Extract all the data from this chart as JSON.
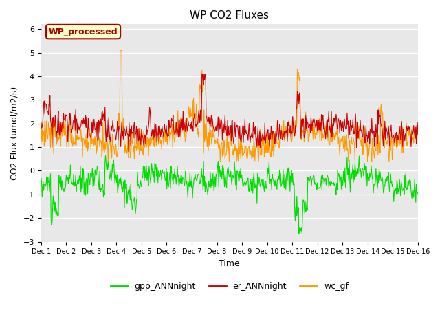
{
  "title": "WP CO2 Fluxes",
  "xlabel": "Time",
  "ylabel": "CO2 Flux (umol/m2/s)",
  "ylim": [
    -3.0,
    6.2
  ],
  "yticks": [
    -3.0,
    -2.0,
    -1.0,
    0.0,
    1.0,
    2.0,
    3.0,
    4.0,
    5.0,
    6.0
  ],
  "n_days": 15,
  "n_per_day": 48,
  "xtick_labels": [
    "Dec 1",
    "Dec 2",
    "Dec 3",
    "Dec 4",
    "Dec 5",
    "Dec 6",
    "Dec 7",
    "Dec 8",
    "Dec 9",
    "Dec 10",
    "Dec 11",
    "Dec 12",
    "Dec 13",
    "Dec 14",
    "Dec 15",
    "Dec 16"
  ],
  "legend_labels": [
    "gpp_ANNnight",
    "er_ANNnight",
    "wc_gf"
  ],
  "legend_colors": [
    "#00dd00",
    "#cc0000",
    "#ff9900"
  ],
  "line_colors": {
    "gpp": "#00dd00",
    "er": "#cc0000",
    "wc": "#ff9900"
  },
  "annotation_text": "WP_processed",
  "annotation_color": "#aa0000",
  "annotation_bg": "#ffffcc",
  "plot_bg": "#e8e8e8",
  "title_fontsize": 11,
  "axis_label_fontsize": 9,
  "tick_fontsize": 8,
  "legend_fontsize": 9,
  "linewidth": 0.8
}
